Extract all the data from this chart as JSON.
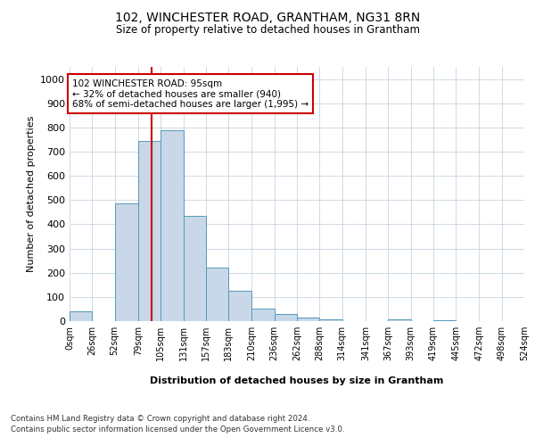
{
  "title1": "102, WINCHESTER ROAD, GRANTHAM, NG31 8RN",
  "title2": "Size of property relative to detached houses in Grantham",
  "xlabel": "Distribution of detached houses by size in Grantham",
  "ylabel": "Number of detached properties",
  "bar_edges": [
    0,
    26,
    52,
    79,
    105,
    131,
    157,
    183,
    210,
    236,
    262,
    288,
    314,
    341,
    367,
    393,
    419,
    445,
    472,
    498,
    524
  ],
  "bar_heights": [
    40,
    0,
    485,
    745,
    790,
    435,
    220,
    125,
    50,
    28,
    15,
    8,
    0,
    0,
    7,
    0,
    5,
    0,
    0,
    0
  ],
  "bar_color": "#c8d8e8",
  "bar_edge_color": "#5599bb",
  "grid_color": "#c8d4e0",
  "property_line_x": 95,
  "annotation_text": "102 WINCHESTER ROAD: 95sqm\n← 32% of detached houses are smaller (940)\n68% of semi-detached houses are larger (1,995) →",
  "annotation_box_color": "#ffffff",
  "annotation_box_edge_color": "#cc0000",
  "vline_color": "#cc0000",
  "ylim": [
    0,
    1050
  ],
  "yticks": [
    0,
    100,
    200,
    300,
    400,
    500,
    600,
    700,
    800,
    900,
    1000
  ],
  "xtick_labels": [
    "0sqm",
    "26sqm",
    "52sqm",
    "79sqm",
    "105sqm",
    "131sqm",
    "157sqm",
    "183sqm",
    "210sqm",
    "236sqm",
    "262sqm",
    "288sqm",
    "314sqm",
    "341sqm",
    "367sqm",
    "393sqm",
    "419sqm",
    "445sqm",
    "472sqm",
    "498sqm",
    "524sqm"
  ],
  "footnote1": "Contains HM Land Registry data © Crown copyright and database right 2024.",
  "footnote2": "Contains public sector information licensed under the Open Government Licence v3.0.",
  "bg_color": "#ffffff",
  "fig_width": 6.0,
  "fig_height": 5.0
}
